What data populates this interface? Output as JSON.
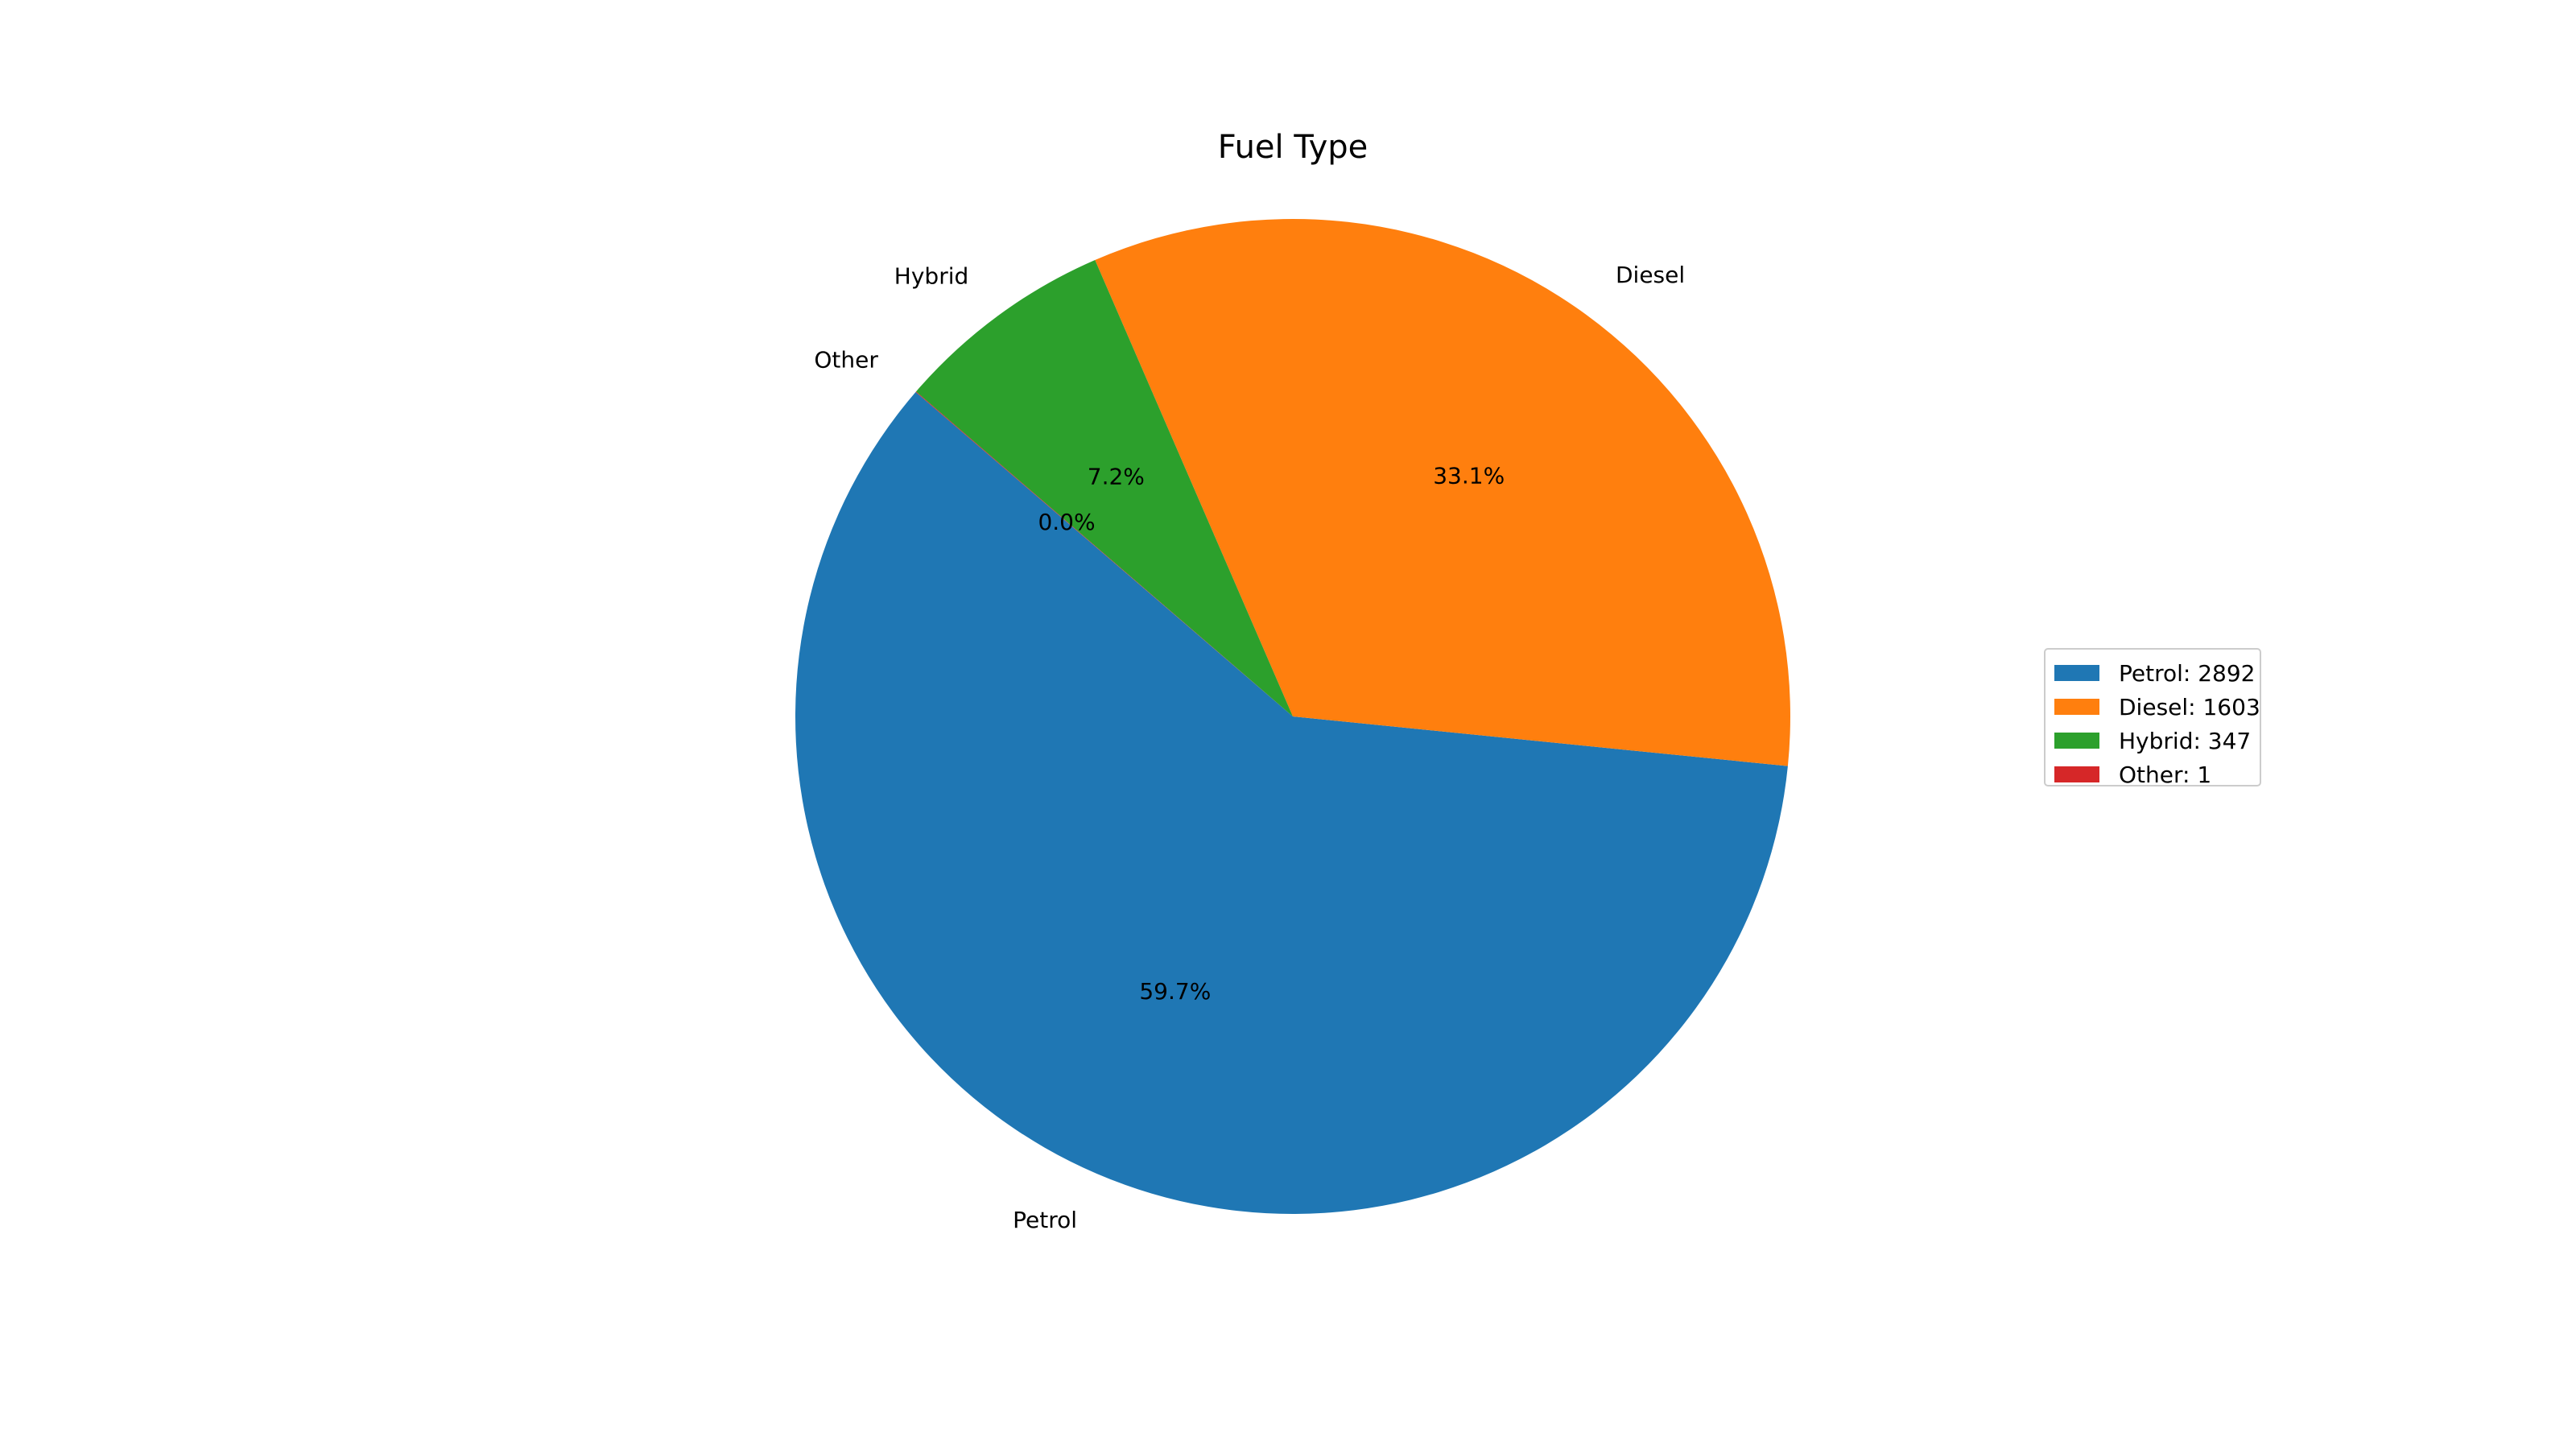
{
  "chart_data": {
    "type": "pie",
    "title": "Fuel Type",
    "slices": [
      {
        "label": "Petrol",
        "value": 2892,
        "percent_label": "59.7%",
        "legend_label": "Petrol: 2892",
        "color": "#1f77b4"
      },
      {
        "label": "Diesel",
        "value": 1603,
        "percent_label": "33.1%",
        "legend_label": "Diesel: 1603",
        "color": "#ff7f0e"
      },
      {
        "label": "Hybrid",
        "value": 347,
        "percent_label": "7.2%",
        "legend_label": "Hybrid: 347",
        "color": "#2ca02c"
      },
      {
        "label": "Other",
        "value": 1,
        "percent_label": "0.0%",
        "legend_label": "Other: 1",
        "color": "#d62728"
      }
    ],
    "legend_position": "right"
  }
}
